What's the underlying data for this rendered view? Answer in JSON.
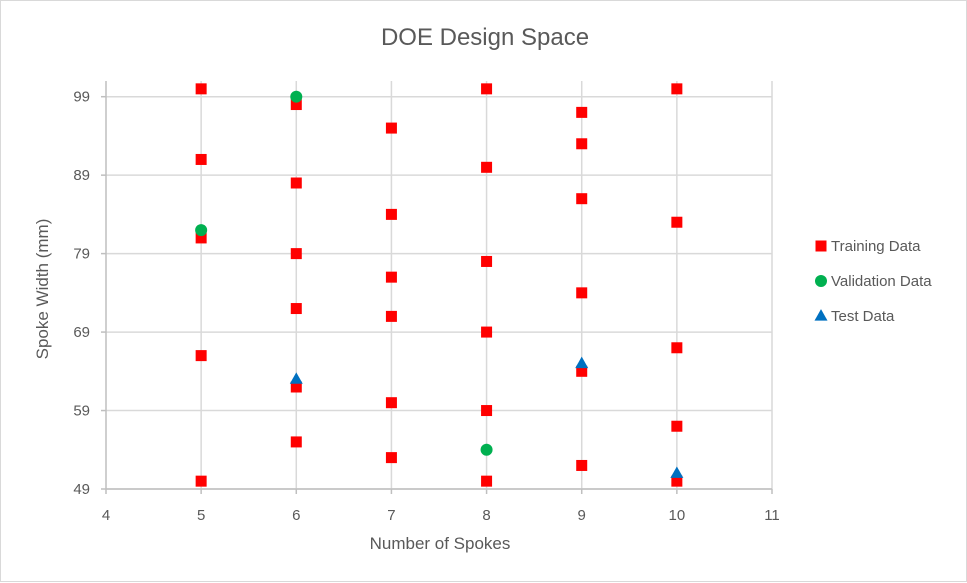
{
  "chart_data": {
    "type": "scatter",
    "title": "DOE Design Space",
    "xlabel": "Number of Spokes",
    "ylabel": "Spoke Width (mm)",
    "xlim": [
      4,
      11
    ],
    "ylim": [
      49,
      101
    ],
    "x_ticks": [
      4,
      5,
      6,
      7,
      8,
      9,
      10,
      11
    ],
    "y_ticks": [
      49,
      59,
      69,
      79,
      89,
      99
    ],
    "grid": true,
    "legend_position": "right",
    "series": [
      {
        "name": "Training Data",
        "marker": "square",
        "color": "#ff0000",
        "points": [
          [
            5,
            100
          ],
          [
            5,
            91
          ],
          [
            5,
            81
          ],
          [
            5,
            66
          ],
          [
            5,
            50
          ],
          [
            6,
            98
          ],
          [
            6,
            88
          ],
          [
            6,
            79
          ],
          [
            6,
            72
          ],
          [
            6,
            62
          ],
          [
            6,
            55
          ],
          [
            7,
            95
          ],
          [
            7,
            84
          ],
          [
            7,
            76
          ],
          [
            7,
            71
          ],
          [
            7,
            60
          ],
          [
            7,
            53
          ],
          [
            8,
            100
          ],
          [
            8,
            90
          ],
          [
            8,
            78
          ],
          [
            8,
            69
          ],
          [
            8,
            59
          ],
          [
            8,
            50
          ],
          [
            9,
            97
          ],
          [
            9,
            93
          ],
          [
            9,
            86
          ],
          [
            9,
            74
          ],
          [
            9,
            64
          ],
          [
            9,
            52
          ],
          [
            10,
            100
          ],
          [
            10,
            83
          ],
          [
            10,
            67
          ],
          [
            10,
            57
          ],
          [
            10,
            50
          ]
        ]
      },
      {
        "name": "Validation Data",
        "marker": "circle",
        "color": "#00b050",
        "points": [
          [
            6,
            99
          ],
          [
            5,
            82
          ],
          [
            8,
            54
          ]
        ]
      },
      {
        "name": "Test Data",
        "marker": "triangle",
        "color": "#0070c0",
        "points": [
          [
            6,
            63
          ],
          [
            9,
            65
          ],
          [
            10,
            51
          ]
        ]
      }
    ]
  }
}
